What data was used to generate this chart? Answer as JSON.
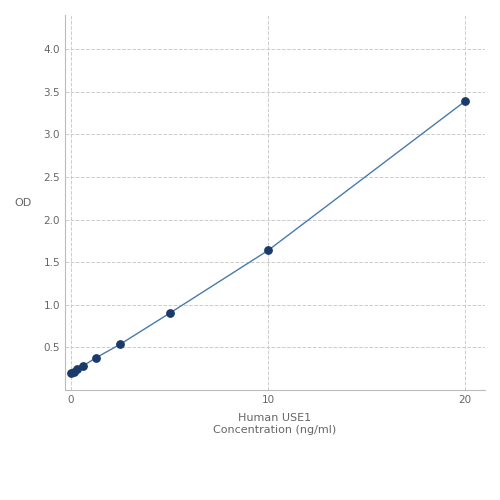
{
  "x_data": [
    0.0,
    0.156,
    0.313,
    0.625,
    1.25,
    2.5,
    5.0,
    10.0,
    20.0
  ],
  "y_data": [
    0.197,
    0.212,
    0.243,
    0.284,
    0.375,
    0.537,
    0.9,
    1.638,
    3.39
  ],
  "line_color": "#4a7aaa",
  "dot_color": "#1a3a6b",
  "xlabel_line1": "Human USE1",
  "xlabel_line2": "Concentration (ng/ml)",
  "ylabel": "OD",
  "xlim": [
    -0.3,
    21
  ],
  "ylim": [
    0.0,
    4.4
  ],
  "yticks": [
    0.5,
    1.0,
    1.5,
    2.0,
    2.5,
    3.0,
    3.5,
    4.0
  ],
  "xticks": [
    0,
    10,
    20
  ],
  "grid_color": "#cccccc",
  "background_color": "#ffffff",
  "dot_size": 28,
  "line_width": 1.0,
  "tick_label_fontsize": 7.5,
  "label_fontsize": 8,
  "label_color": "#666666"
}
